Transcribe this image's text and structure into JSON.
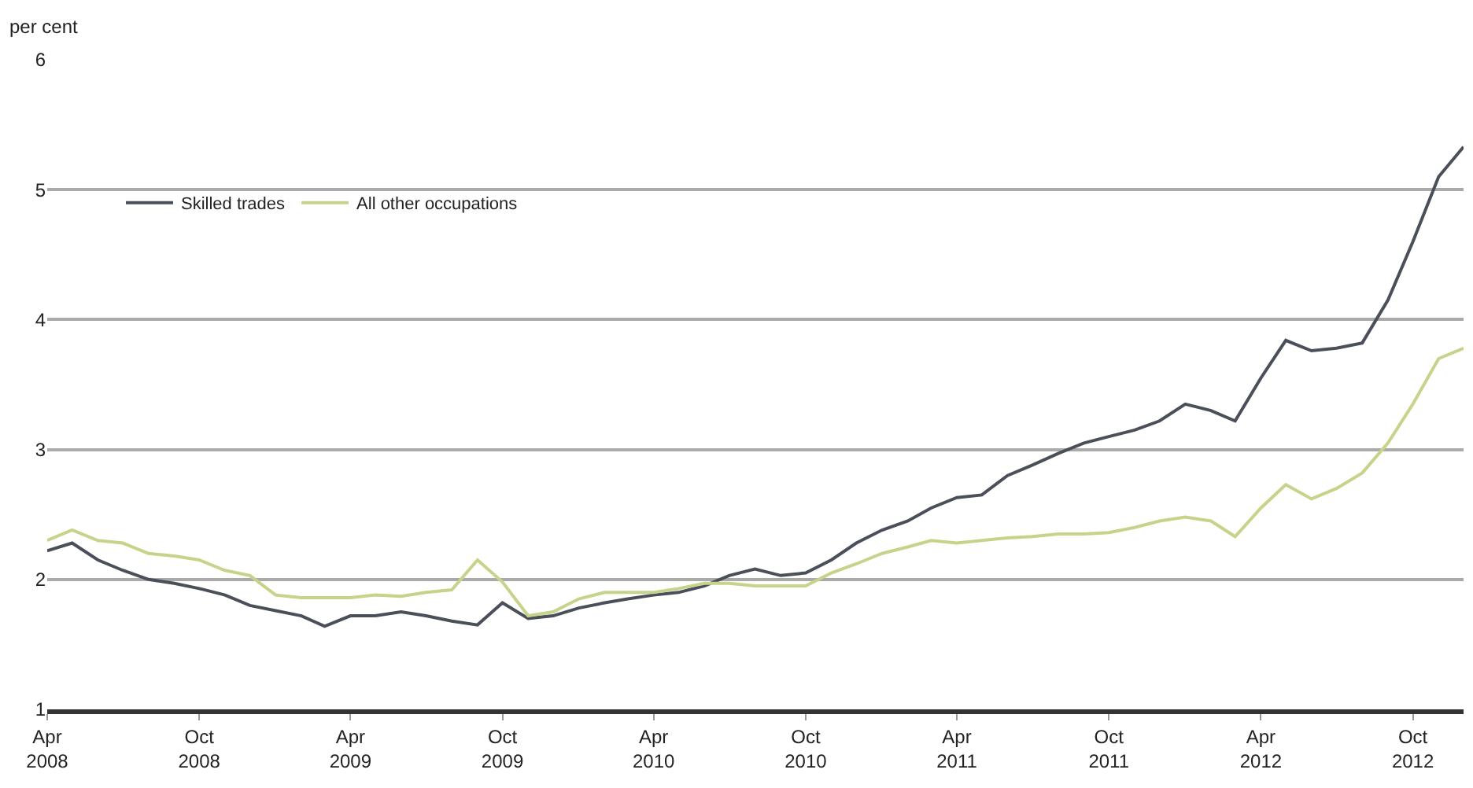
{
  "chart_data": {
    "type": "line",
    "ylabel": "per cent",
    "x": [
      "2008-04",
      "2008-05",
      "2008-06",
      "2008-07",
      "2008-08",
      "2008-09",
      "2008-10",
      "2008-11",
      "2008-12",
      "2009-01",
      "2009-02",
      "2009-03",
      "2009-04",
      "2009-05",
      "2009-06",
      "2009-07",
      "2009-08",
      "2009-09",
      "2009-10",
      "2009-11",
      "2009-12",
      "2010-01",
      "2010-02",
      "2010-03",
      "2010-04",
      "2010-05",
      "2010-06",
      "2010-07",
      "2010-08",
      "2010-09",
      "2010-10",
      "2010-11",
      "2010-12",
      "2011-01",
      "2011-02",
      "2011-03",
      "2011-04",
      "2011-05",
      "2011-06",
      "2011-07",
      "2011-08",
      "2011-09",
      "2011-10",
      "2011-11",
      "2011-12",
      "2012-01",
      "2012-02",
      "2012-03",
      "2012-04",
      "2012-05",
      "2012-06",
      "2012-07",
      "2012-08",
      "2012-09",
      "2012-10",
      "2012-11",
      "2012-12"
    ],
    "series": [
      {
        "name": "Skilled trades",
        "color": "#4a4f5a",
        "values": [
          2.22,
          2.28,
          2.15,
          2.07,
          2.0,
          1.97,
          1.93,
          1.88,
          1.8,
          1.76,
          1.72,
          1.64,
          1.72,
          1.72,
          1.75,
          1.72,
          1.68,
          1.65,
          1.82,
          1.7,
          1.72,
          1.78,
          1.82,
          1.85,
          1.88,
          1.9,
          1.95,
          2.03,
          2.08,
          2.03,
          2.05,
          2.15,
          2.28,
          2.38,
          2.45,
          2.55,
          2.63,
          2.65,
          2.8,
          2.88,
          2.97,
          3.05,
          3.1,
          3.15,
          3.22,
          3.35,
          3.3,
          3.22,
          3.55,
          3.84,
          3.76,
          3.78,
          3.82,
          4.15,
          4.6,
          5.1,
          5.33
        ]
      },
      {
        "name": "All other occupations",
        "color": "#c5d48a",
        "values": [
          2.3,
          2.38,
          2.3,
          2.28,
          2.2,
          2.18,
          2.15,
          2.07,
          2.03,
          1.88,
          1.86,
          1.86,
          1.86,
          1.88,
          1.87,
          1.9,
          1.92,
          2.15,
          1.98,
          1.72,
          1.75,
          1.85,
          1.9,
          1.9,
          1.9,
          1.93,
          1.97,
          1.97,
          1.95,
          1.95,
          1.95,
          2.05,
          2.12,
          2.2,
          2.25,
          2.3,
          2.28,
          2.3,
          2.32,
          2.33,
          2.35,
          2.35,
          2.36,
          2.4,
          2.45,
          2.48,
          2.45,
          2.33,
          2.55,
          2.73,
          2.62,
          2.7,
          2.82,
          3.05,
          3.35,
          3.7,
          3.78
        ]
      }
    ],
    "xlim": [
      "2008-04",
      "2012-12"
    ],
    "xticks": [
      {
        "value": "2008-04",
        "label": "Apr\n2008"
      },
      {
        "value": "2008-10",
        "label": "Oct\n2008"
      },
      {
        "value": "2009-04",
        "label": "Apr\n2009"
      },
      {
        "value": "2009-10",
        "label": "Oct\n2009"
      },
      {
        "value": "2010-04",
        "label": "Apr\n2010"
      },
      {
        "value": "2010-10",
        "label": "Oct\n2010"
      },
      {
        "value": "2011-04",
        "label": "Apr\n2011"
      },
      {
        "value": "2011-10",
        "label": "Oct\n2011"
      },
      {
        "value": "2012-04",
        "label": "Apr\n2012"
      },
      {
        "value": "2012-10",
        "label": "Oct\n2012"
      }
    ],
    "ylim": [
      1,
      6
    ],
    "yticks": [
      1,
      2,
      3,
      4,
      5,
      6
    ],
    "grid": "y",
    "legend": "top left",
    "marker": "none",
    "line_style": "solid"
  }
}
